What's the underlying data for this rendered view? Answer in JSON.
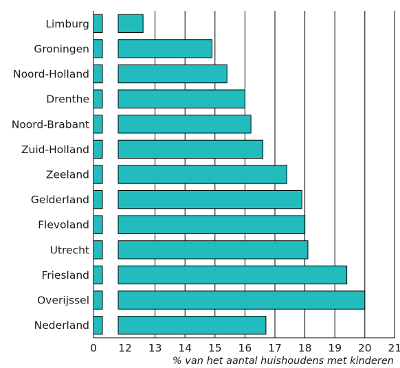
{
  "chart_data": {
    "type": "bar",
    "orientation": "horizontal",
    "categories": [
      "Limburg",
      "Groningen",
      "Noord-Holland",
      "Drenthe",
      "Noord-Brabant",
      "Zuid-Holland",
      "Zeeland",
      "Gelderland",
      "Flevoland",
      "Utrecht",
      "Friesland",
      "Overijssel",
      "Nederland"
    ],
    "values": [
      12.6,
      14.9,
      15.4,
      16.0,
      16.2,
      16.6,
      17.4,
      17.9,
      18.0,
      18.1,
      19.4,
      20.0,
      16.7
    ],
    "xlabel": "% van het aantal huishoudens met kinderen",
    "ylabel": "",
    "title": "",
    "x_ticks": [
      "0",
      "12",
      "13",
      "14",
      "15",
      "16",
      "17",
      "18",
      "19",
      "20",
      "21"
    ],
    "x_axis_break": "0 to 12",
    "xlim": [
      11.8,
      21
    ],
    "grid": "vertical",
    "bar_color": "#22bcbf"
  }
}
